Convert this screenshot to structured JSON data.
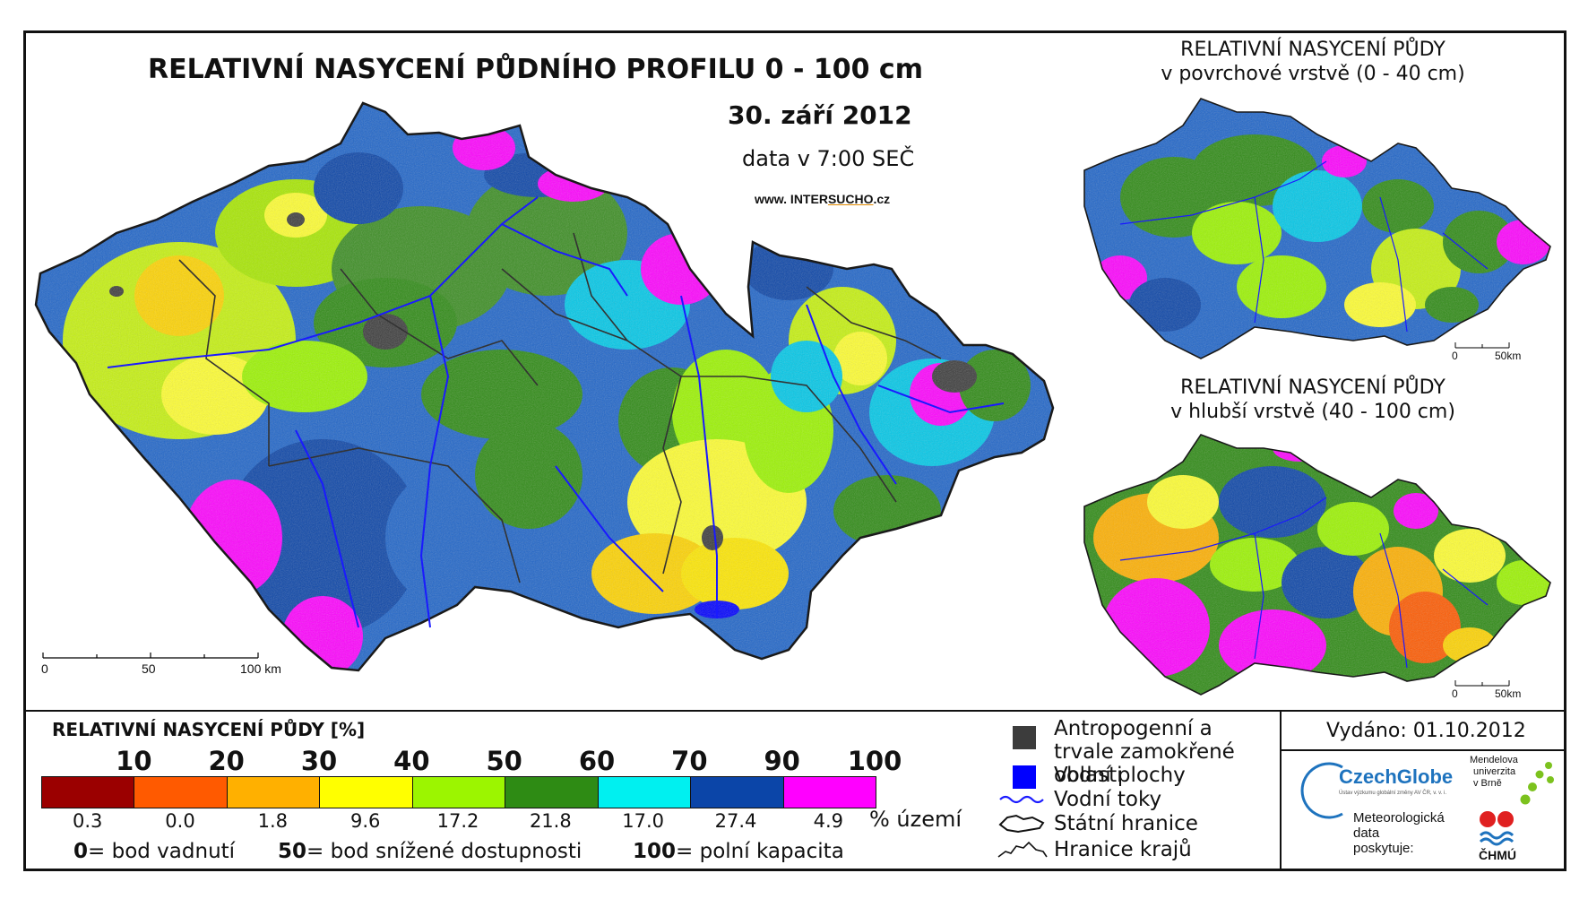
{
  "main": {
    "title": "RELATIVNÍ NASYCENÍ PŮDNÍHO PROFILU 0 - 100 cm",
    "date": "30. září 2012",
    "time": "data v 7:00 SEČ",
    "website_prefix": "www. INTER",
    "website_highlight": "SUCHO",
    "website_suffix": ".cz",
    "scale": [
      "0",
      "50",
      "100 km"
    ]
  },
  "inset_top": {
    "title_line1": "RELATIVNÍ NASYCENÍ PŮDY",
    "title_line2": "v povrchové vrstvě (0 - 40 cm)",
    "scale": [
      "0",
      "50km"
    ]
  },
  "inset_bottom": {
    "title_line1": "RELATIVNÍ NASYCENÍ PŮDY",
    "title_line2": "v hlubší vrstvě (40 - 100 cm)",
    "scale": [
      "0",
      "50km"
    ]
  },
  "legend": {
    "title": "RELATIVNÍ NASYCENÍ PŮDY [%]",
    "ticks": [
      "10",
      "20",
      "30",
      "40",
      "50",
      "60",
      "70",
      "90",
      "100"
    ],
    "colors": [
      "#9b0000",
      "#ff5a00",
      "#ffb000",
      "#ffff00",
      "#9cf500",
      "#2e8b14",
      "#00f0f0",
      "#0b45a8",
      "#ff00ff"
    ],
    "percent_values": [
      "0.3",
      "0.0",
      "1.8",
      "9.6",
      "17.2",
      "21.8",
      "17.0",
      "27.4",
      "4.9"
    ],
    "percent_unit": "% území",
    "notes": [
      {
        "num": "0",
        "text": "= bod vadnutí"
      },
      {
        "num": "50",
        "text": "= bod snížené dostupnosti"
      },
      {
        "num": "100",
        "text": "= polní kapacita"
      }
    ]
  },
  "symbols": {
    "anthropogenic": "Antropogenní a trvale zamokřené oblasti",
    "water_bodies": "Vodní plochy",
    "rivers": "Vodní toky",
    "state_border": "Státní hranice",
    "region_border": "Hranice krajů"
  },
  "issued": {
    "text": "Vydáno: 01.10.2012"
  },
  "logos": {
    "czechglobe": "CzechGlobe",
    "czechglobe_sub": "Ústav výzkumu globální změny AV ČR, v. v. i.",
    "mendel_line1": "Mendelova",
    "mendel_line2": "univerzita",
    "mendel_line3": "v Brně",
    "meteo_line1": "Meteorologická",
    "meteo_line2": "data",
    "meteo_line3": "poskytuje:",
    "chmu": "ČHMÚ"
  },
  "map_colors": {
    "anthropogenic": "#3c3c3c",
    "water": "#0000ff",
    "river": "#1a1aff",
    "border": "#222222"
  }
}
